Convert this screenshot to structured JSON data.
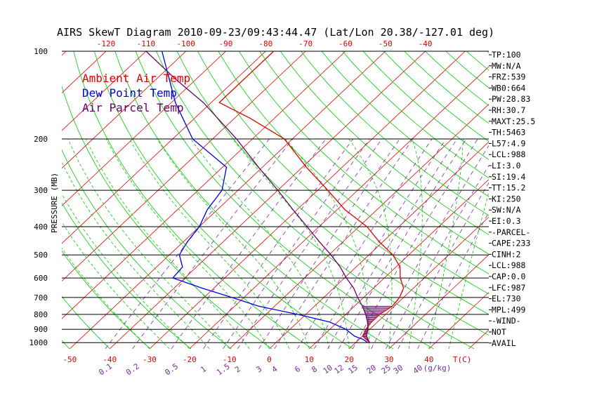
{
  "chart_data": {
    "type": "line",
    "title": "AIRS SkewT Diagram 2010-09-23/09:43:44.47 (Lat/Lon 20.38/-127.01 deg)",
    "ylabel": "PRESSURE (MB)",
    "y_scale": "log-pressure",
    "ylim": [
      1050,
      100
    ],
    "xlim_bottom_T": [
      -52,
      55
    ],
    "pressure_ticks": [
      "100",
      "200",
      "300",
      "400",
      "500",
      "600",
      "700",
      "800",
      "900",
      "1000"
    ],
    "bottom_temp_ticks": [
      "-50",
      "-40",
      "-30",
      "-20",
      "-10",
      "0",
      "10",
      "20",
      "30",
      "40"
    ],
    "bottom_unit": "T(C)",
    "top_temp_ticks": [
      "-120",
      "-110",
      "-100",
      "-90",
      "-80",
      "-70",
      "-60",
      "-50",
      "-40"
    ],
    "mixing_ratio_ticks": [
      "0.1",
      "0.2",
      "0.5",
      "1",
      "1.5",
      "2",
      "3",
      "4",
      "6",
      "8",
      "10",
      "12",
      "15",
      "20",
      "25",
      "30",
      "40"
    ],
    "mixing_ratio_unit": "(g/kg)",
    "legend": [
      {
        "name": "Ambient Air Temp",
        "color": "#e00000"
      },
      {
        "name": "Dew Point Temp",
        "color": "#0000e0"
      },
      {
        "name": "Air Parcel Temp",
        "color": "#6a006a"
      }
    ],
    "series": [
      {
        "name": "Ambient Air Temp",
        "color": "#e00000",
        "points": [
          [
            1000,
            23.5
          ],
          [
            950,
            20
          ],
          [
            900,
            19
          ],
          [
            850,
            18.5
          ],
          [
            800,
            18.5
          ],
          [
            750,
            19.5
          ],
          [
            700,
            19
          ],
          [
            650,
            17.5
          ],
          [
            600,
            14
          ],
          [
            550,
            11
          ],
          [
            500,
            6
          ],
          [
            450,
            -1
          ],
          [
            400,
            -8
          ],
          [
            350,
            -18
          ],
          [
            300,
            -27.5
          ],
          [
            250,
            -39
          ],
          [
            200,
            -52
          ],
          [
            170,
            -66
          ],
          [
            150,
            -78
          ],
          [
            125,
            -78
          ],
          [
            100,
            -78
          ]
        ]
      },
      {
        "name": "Dew Point Temp",
        "color": "#0000e0",
        "points": [
          [
            1000,
            23
          ],
          [
            975,
            21
          ],
          [
            950,
            18
          ],
          [
            900,
            14
          ],
          [
            850,
            8
          ],
          [
            800,
            -2
          ],
          [
            750,
            -14
          ],
          [
            700,
            -23
          ],
          [
            650,
            -33
          ],
          [
            600,
            -43
          ],
          [
            550,
            -43.5
          ],
          [
            500,
            -47.5
          ],
          [
            450,
            -49
          ],
          [
            400,
            -50
          ],
          [
            350,
            -52.5
          ],
          [
            300,
            -54
          ],
          [
            250,
            -59
          ],
          [
            200,
            -75
          ],
          [
            150,
            -89
          ],
          [
            100,
            -106
          ]
        ]
      },
      {
        "name": "Air Parcel Temp",
        "color": "#6a006a",
        "points": [
          [
            1000,
            23.5
          ],
          [
            950,
            21
          ],
          [
            900,
            19.5
          ],
          [
            850,
            17.5
          ],
          [
            800,
            15
          ],
          [
            750,
            12
          ],
          [
            700,
            8.5
          ],
          [
            650,
            5
          ],
          [
            600,
            0.5
          ],
          [
            550,
            -4
          ],
          [
            500,
            -9.5
          ],
          [
            450,
            -16
          ],
          [
            400,
            -23
          ],
          [
            350,
            -31
          ],
          [
            300,
            -40
          ],
          [
            250,
            -51
          ],
          [
            200,
            -64
          ],
          [
            150,
            -82
          ],
          [
            125,
            -95
          ],
          [
            100,
            -110
          ]
        ]
      }
    ],
    "indices": [
      "TP:100",
      "MW:N/A",
      "FRZ:539",
      "WB0:664",
      "PW:28.83",
      "RH:30.7",
      "MAXT:25.5",
      "TH:5463",
      "L57:4.9",
      "LCL:988",
      "LI:3.0",
      "SI:19.4",
      "TT:15.2",
      "KI:250",
      "SW:N/A",
      "EI:0.3",
      "-PARCEL-",
      "CAPE:233",
      "CINH:2",
      "LCL:988",
      "CAP:0.0",
      "LFC:987",
      "EL:730",
      "MPL:499",
      "-WIND-",
      "NOT",
      "AVAIL"
    ]
  }
}
